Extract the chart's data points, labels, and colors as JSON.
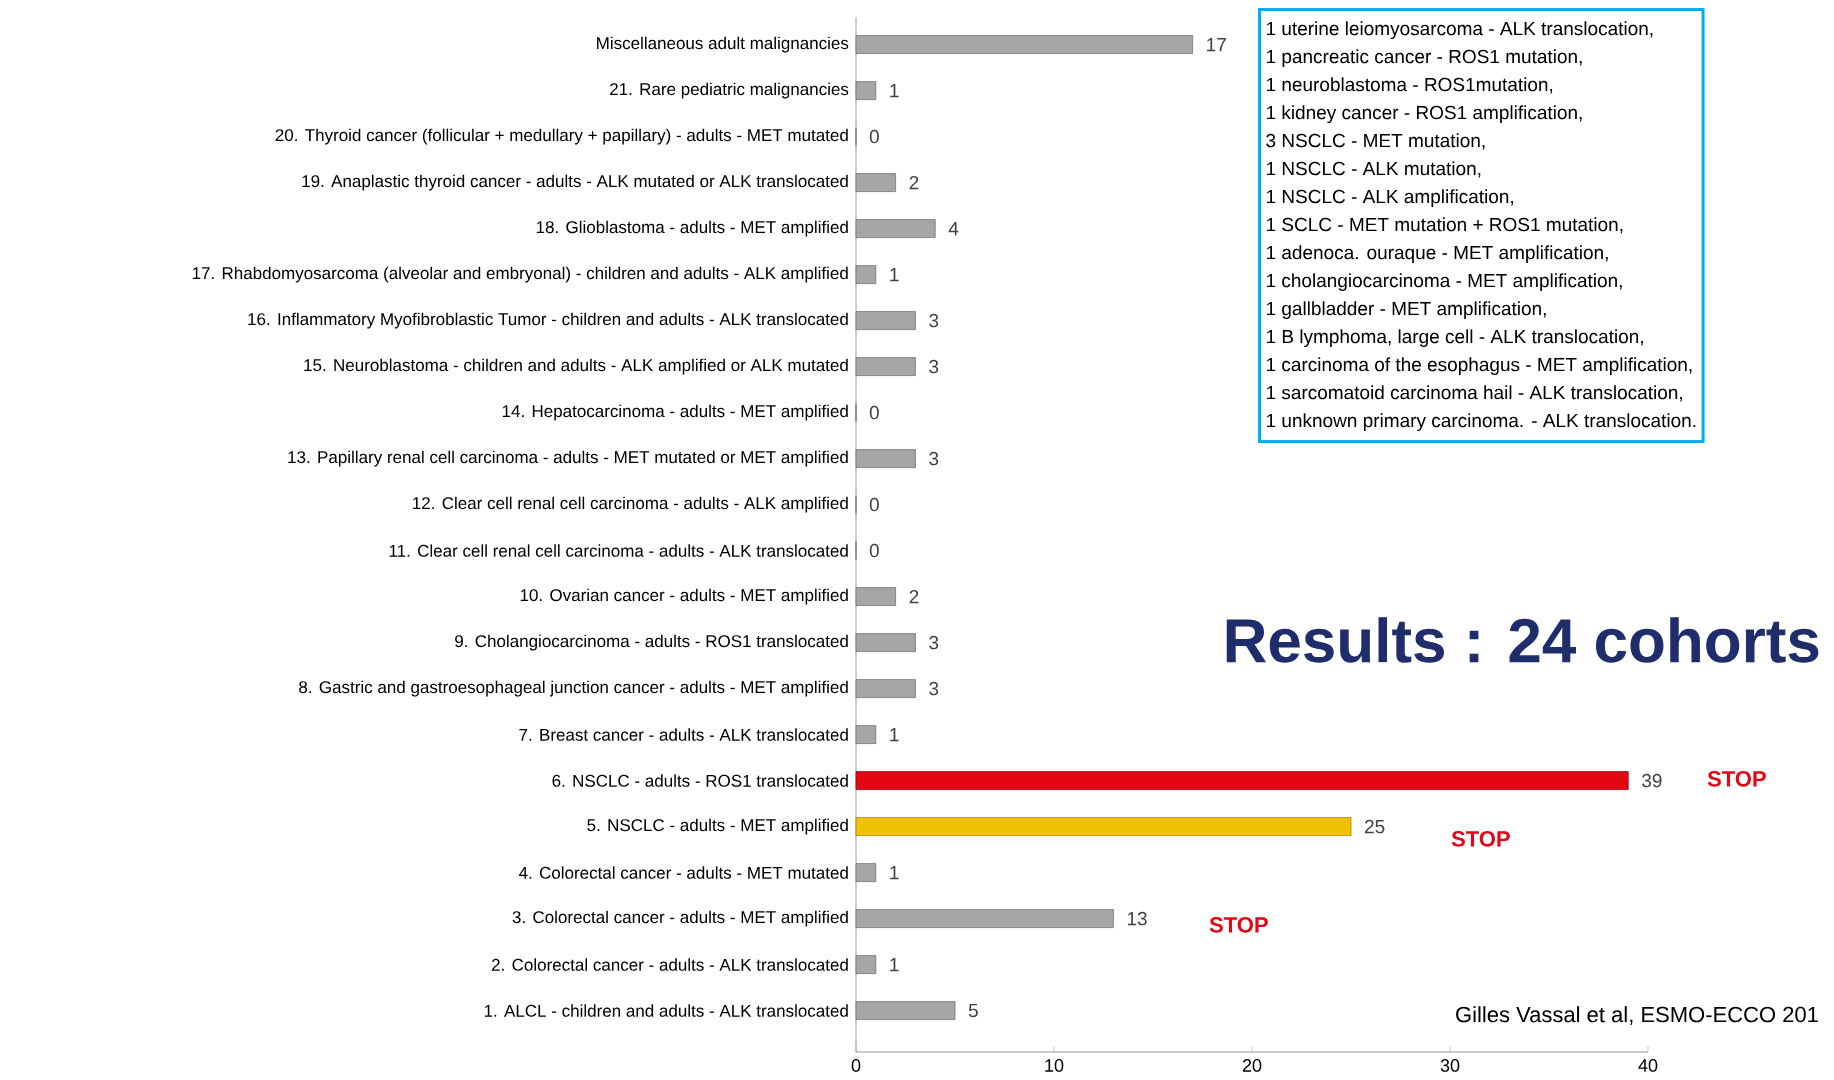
{
  "chart_data": {
    "type": "bar",
    "orientation": "horizontal",
    "title": "Results : 24 cohorts",
    "categories": [
      "Miscellaneous adult malignancies",
      "21. Rare pediatric malignancies",
      "20. Thyroid cancer (follicular + medullary + papillary) - adults - MET mutated",
      "19. Anaplastic thyroid cancer - adults - ALK mutated or ALK translocated",
      "18. Glioblastoma - adults - MET amplified",
      "17. Rhabdomyosarcoma (alveolar and embryonal) - children and adults - ALK amplified",
      "16. Inflammatory Myofibroblastic Tumor - children and adults - ALK translocated",
      "15. Neuroblastoma - children and adults - ALK amplified or ALK mutated",
      "14. Hepatocarcinoma - adults - MET amplified",
      "13. Papillary renal cell carcinoma - adults - MET mutated or MET amplified",
      "12. Clear cell renal cell carcinoma - adults - ALK amplified",
      "11. Clear cell renal cell carcinoma - adults - ALK translocated",
      "10. Ovarian cancer - adults - MET amplified",
      "9. Cholangiocarcinoma - adults - ROS1 translocated",
      "8. Gastric and gastroesophageal junction cancer - adults - MET amplified",
      "7. Breast cancer - adults - ALK translocated",
      "6. NSCLC - adults - ROS1 translocated",
      "5. NSCLC - adults - MET amplified",
      "4. Colorectal cancer - adults - MET mutated",
      "3. Colorectal cancer - adults - MET amplified",
      "2. Colorectal cancer - adults - ALK translocated",
      "1. ALCL - children and adults - ALK translocated"
    ],
    "values": [
      17,
      1,
      0,
      2,
      4,
      1,
      3,
      3,
      0,
      3,
      0,
      0,
      2,
      3,
      3,
      1,
      39,
      25,
      1,
      13,
      1,
      5
    ],
    "colors": [
      "#a6a6a6",
      "#a6a6a6",
      "#a6a6a6",
      "#a6a6a6",
      "#a6a6a6",
      "#a6a6a6",
      "#a6a6a6",
      "#a6a6a6",
      "#a6a6a6",
      "#a6a6a6",
      "#a6a6a6",
      "#a6a6a6",
      "#a6a6a6",
      "#a6a6a6",
      "#a6a6a6",
      "#a6a6a6",
      "#e30613",
      "#f2c200",
      "#a6a6a6",
      "#a6a6a6",
      "#a6a6a6",
      "#a6a6a6"
    ],
    "data_labels": true,
    "xlim": [
      0,
      40
    ],
    "xticks": [
      0,
      10,
      20,
      30,
      40
    ],
    "annotations": [
      "1 uterine leiomyosarcoma - ALK translocation,",
      "1 pancreatic cancer -  ROS1 mutation,",
      "1 neuroblastoma -  ROS1mutation,",
      "1 kidney cancer -  ROS1 amplification,",
      "3 NSCLC - MET mutation,",
      "1 NSCLC - ALK mutation,",
      "1 NSCLC - ALK amplification,",
      "1 SCLC - MET mutation + ROS1 mutation,",
      "1 adenoca. ouraque - MET amplification,",
      "1 cholangiocarcinoma - MET amplification,",
      "1 gallbladder - MET amplification,",
      "1 B lymphoma, large cell -  ALK translocation,",
      "1 carcinoma of the esophagus - MET amplification,",
      "1 sarcomatoid carcinoma hail -  ALK translocation,",
      "1 unknown primary carcinoma. - ALK translocation.",
      "STOP",
      "STOP",
      "STOP",
      "Gilles Vassal et al, ESMO-ECCO 201"
    ]
  }
}
